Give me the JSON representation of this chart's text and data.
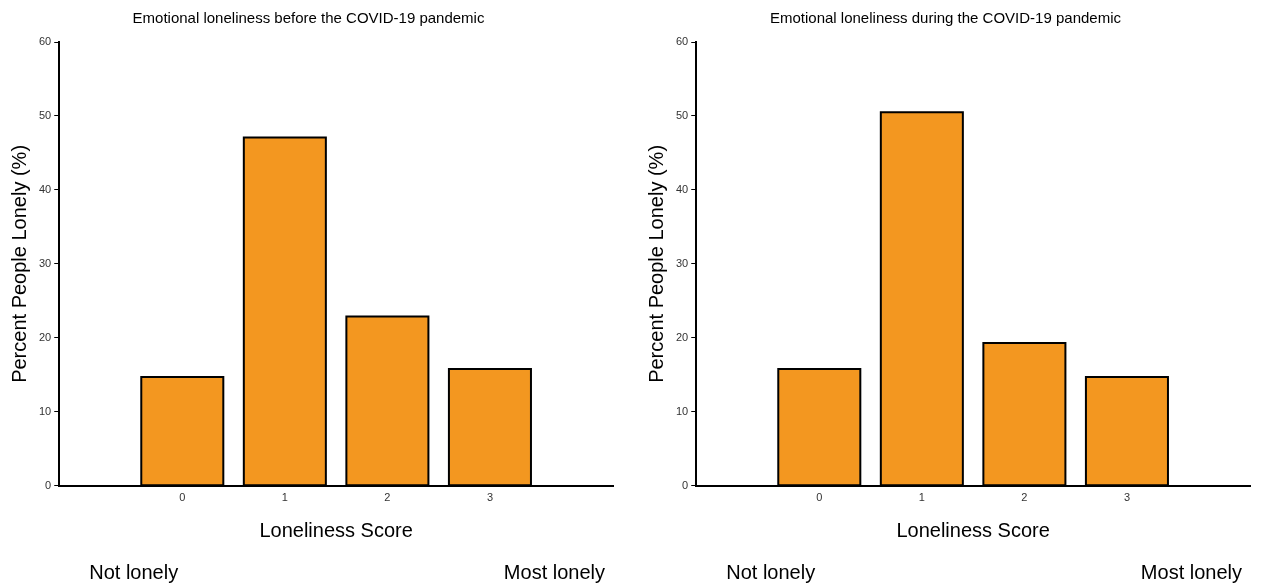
{
  "chart_data": [
    {
      "type": "bar",
      "title": "Emotional loneliness before the COVID-19 pandemic",
      "xlabel": "Loneliness Score",
      "ylabel": "Percent People Lonely (%)",
      "x": [
        0,
        1,
        2,
        3
      ],
      "values": [
        14.7,
        47.1,
        22.9,
        15.8
      ],
      "color": "#f39720",
      "xlim": [
        -1.2,
        4.2
      ],
      "xticks": [
        0,
        1,
        2,
        3
      ],
      "ylim": [
        0,
        60
      ],
      "yticks": [
        0,
        10,
        20,
        30,
        40,
        50,
        60
      ],
      "grid": false,
      "legend": false,
      "annotations": [
        "Not lonely",
        "Most lonely"
      ]
    },
    {
      "type": "bar",
      "title": "Emotional loneliness during the COVID-19 pandemic",
      "xlabel": "Loneliness Score",
      "ylabel": "Percent People Lonely (%)",
      "x": [
        0,
        1,
        2,
        3
      ],
      "values": [
        15.8,
        50.5,
        19.3,
        14.7
      ],
      "color": "#f39720",
      "xlim": [
        -1.2,
        4.2
      ],
      "xticks": [
        0,
        1,
        2,
        3
      ],
      "ylim": [
        0,
        60
      ],
      "yticks": [
        0,
        10,
        20,
        30,
        40,
        50,
        60
      ],
      "grid": false,
      "legend": false,
      "annotations": [
        "Not lonely",
        "Most lonely"
      ]
    }
  ]
}
